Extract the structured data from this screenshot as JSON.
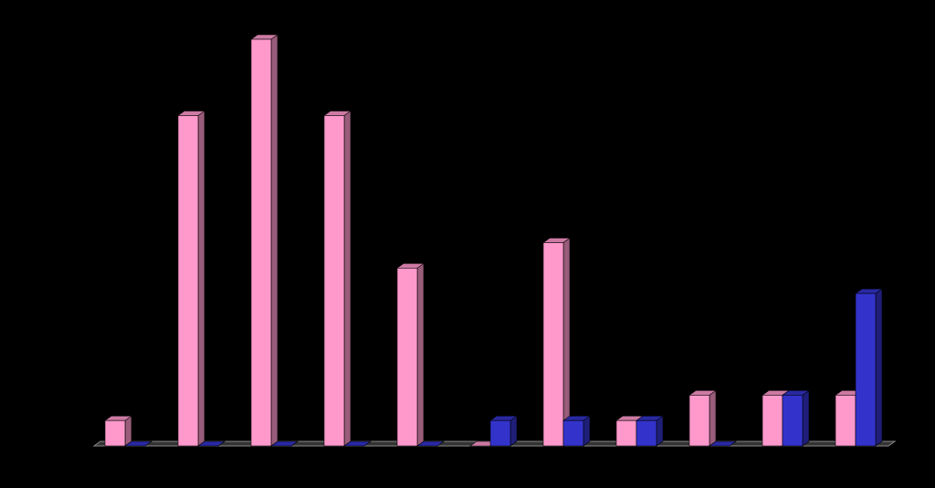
{
  "chart_data": {
    "type": "bar3d",
    "categories": [
      null,
      null,
      null,
      null,
      null,
      null,
      null,
      null,
      null,
      null,
      null
    ],
    "series": [
      {
        "color": "#ff99cc",
        "values": [
          1,
          13,
          16,
          13,
          7,
          0,
          8,
          1,
          2,
          2,
          2
        ]
      },
      {
        "color": "#3333cc",
        "values": [
          0,
          0,
          0,
          0,
          0,
          1,
          1,
          1,
          0,
          2,
          6
        ]
      }
    ],
    "ylim": [
      0,
      16
    ]
  }
}
